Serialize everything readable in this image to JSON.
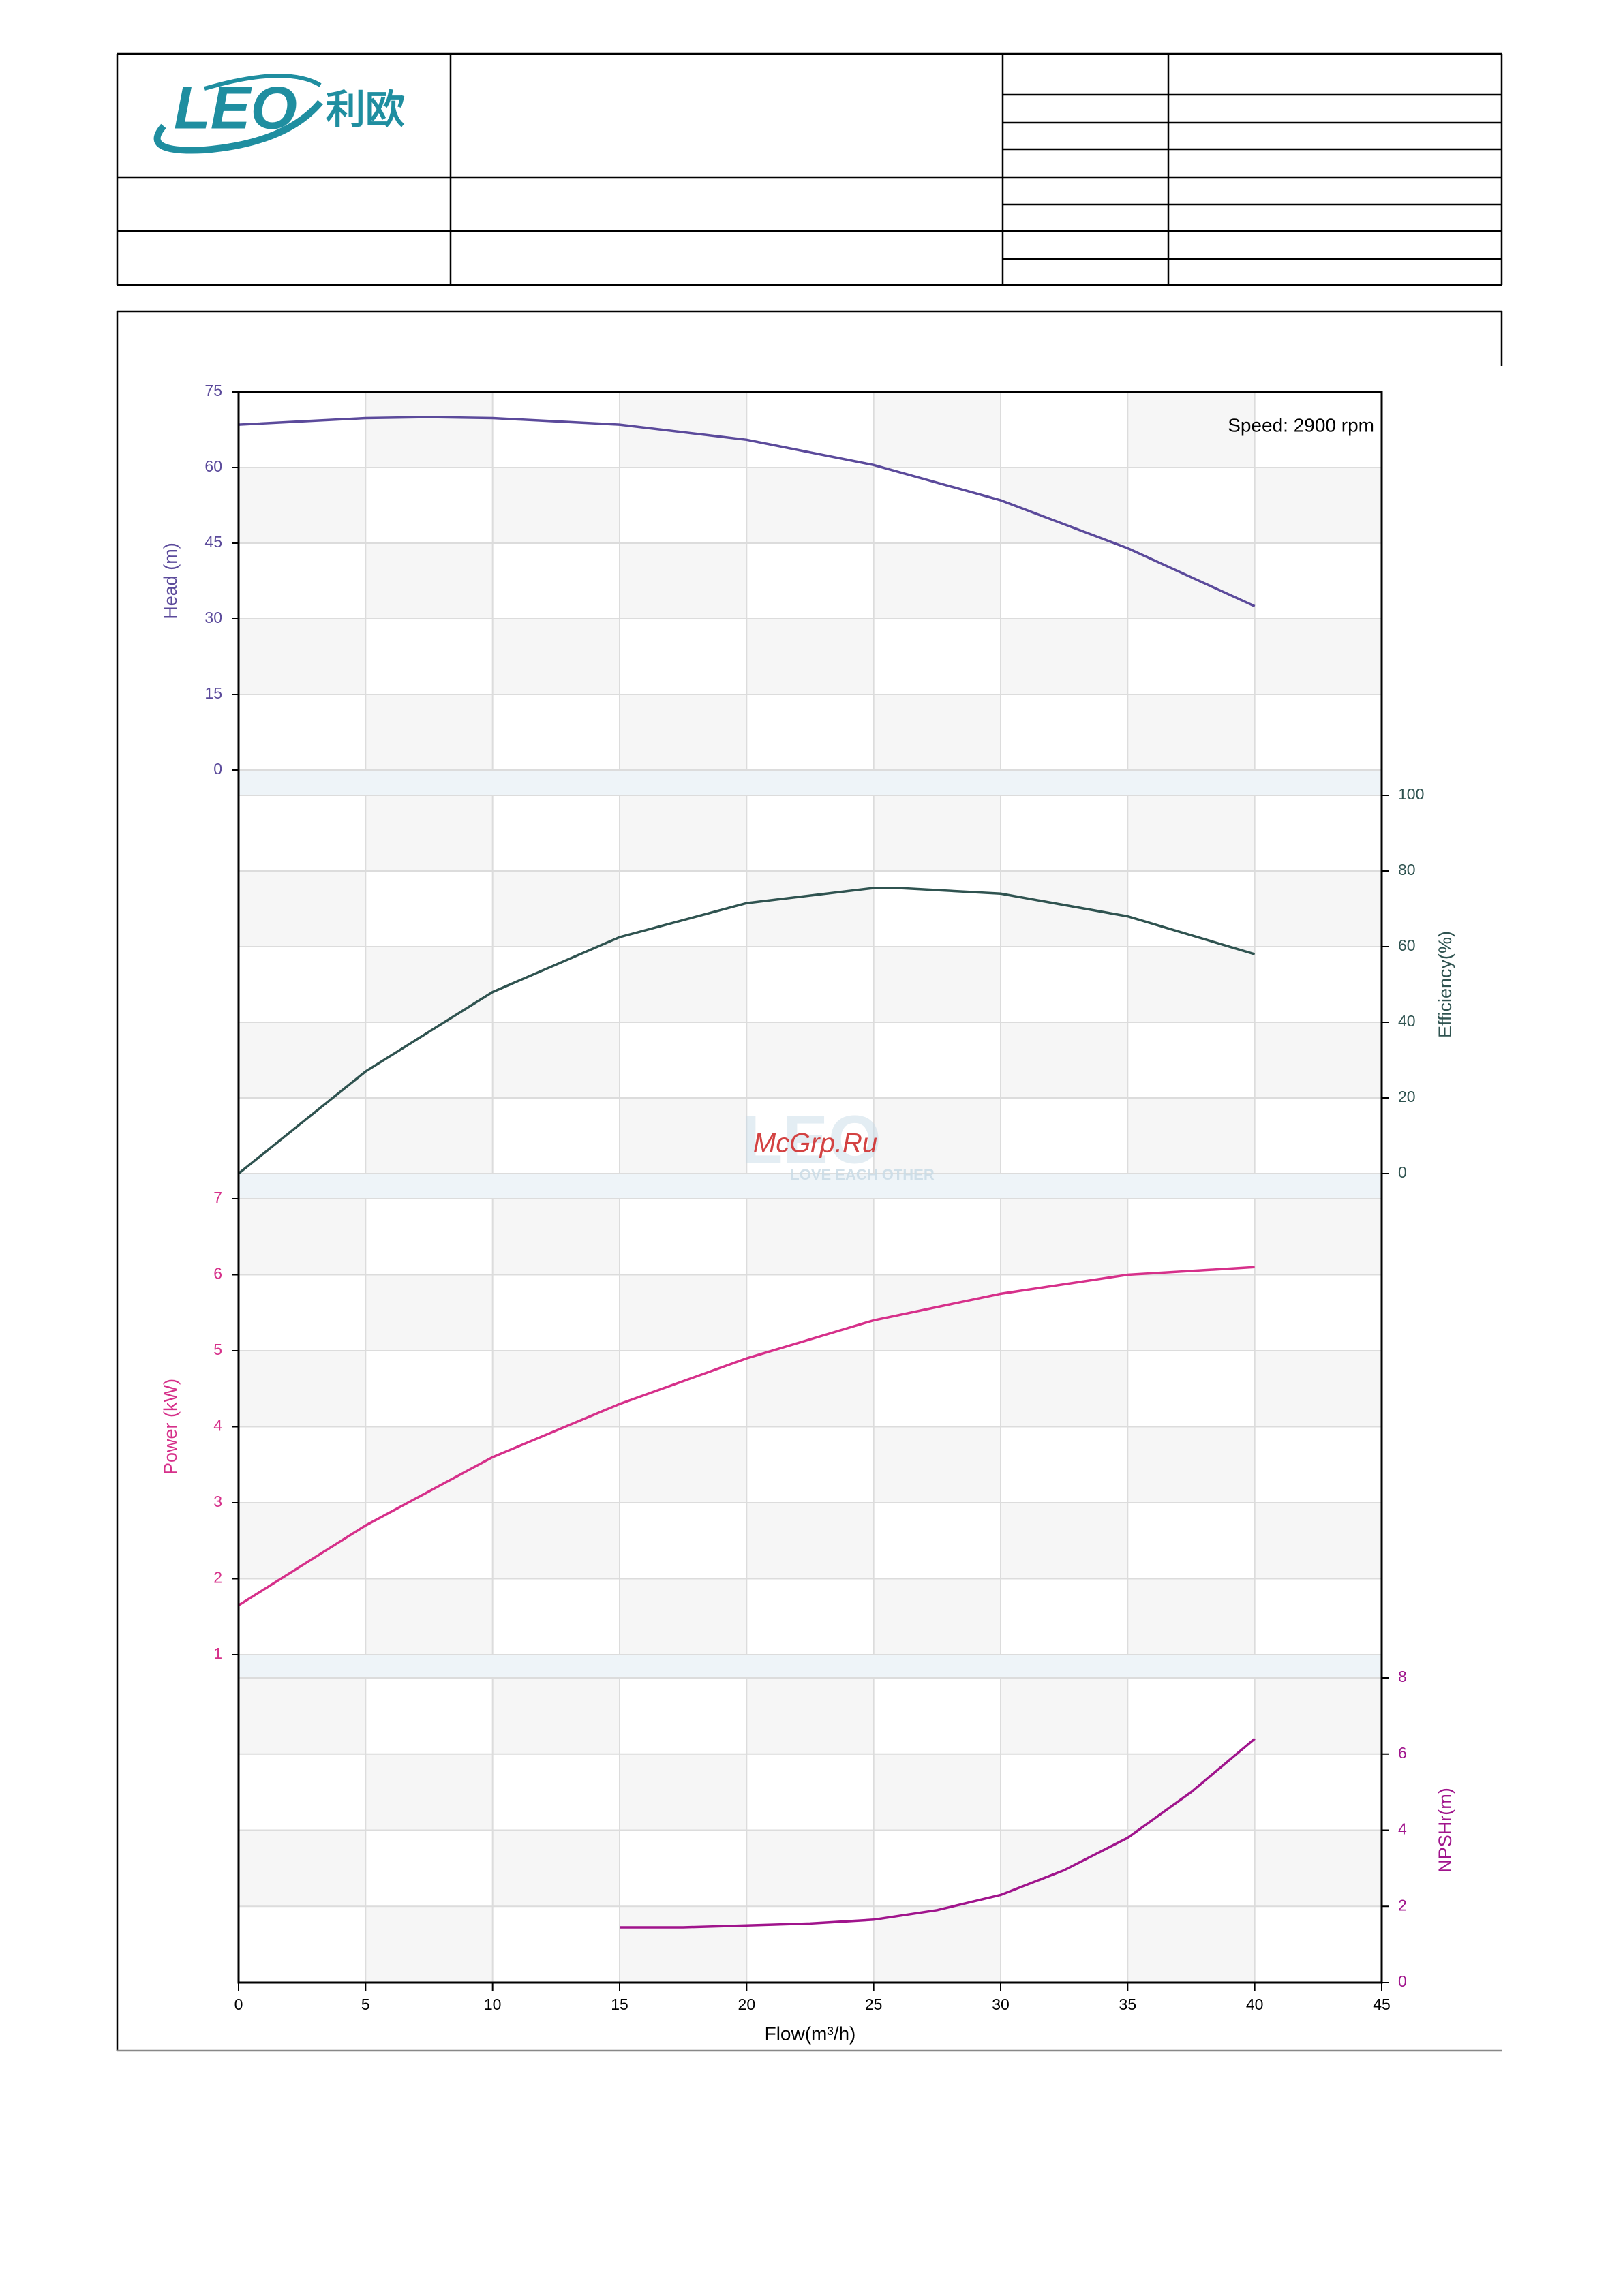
{
  "header": {
    "logo": "LEO",
    "logo_cn": "利欧"
  },
  "watermark": {
    "text": "McGrp.Ru",
    "tagline": "LOVE EACH OTHER"
  },
  "chart_data": [
    {
      "type": "line",
      "annotation": "Speed: 2900 rpm",
      "ylabel": "Head (m)",
      "axis_side": "left",
      "color": "#5b4a9b",
      "x": [
        0,
        5,
        7.5,
        10,
        15,
        20,
        25,
        30,
        35,
        40
      ],
      "values": [
        68.5,
        69.8,
        70,
        69.8,
        68.5,
        65.5,
        60.5,
        53.5,
        44,
        32.5
      ],
      "xlim": [
        0,
        45
      ],
      "ylim": [
        0,
        75
      ],
      "yticks": [
        0,
        15,
        30,
        45,
        60,
        75
      ]
    },
    {
      "type": "line",
      "ylabel": "Efficiency(%)",
      "axis_side": "right",
      "color": "#2f5350",
      "x": [
        0,
        5,
        10,
        15,
        20,
        25,
        26,
        30,
        35,
        40
      ],
      "values": [
        0,
        27,
        48,
        62.5,
        71.5,
        75.5,
        75.5,
        74,
        68,
        58
      ],
      "xlim": [
        0,
        45
      ],
      "ylim": [
        0,
        100
      ],
      "yticks": [
        0,
        20,
        40,
        60,
        80,
        100
      ]
    },
    {
      "type": "line",
      "ylabel": "Power (kW)",
      "axis_side": "left",
      "color": "#d6308a",
      "x": [
        0,
        5,
        10,
        15,
        20,
        25,
        30,
        35,
        40
      ],
      "values": [
        1.65,
        2.7,
        3.6,
        4.3,
        4.9,
        5.4,
        5.75,
        6.0,
        6.1
      ],
      "xlim": [
        0,
        45
      ],
      "ylim": [
        1,
        7
      ],
      "yticks": [
        1,
        2,
        3,
        4,
        5,
        6,
        7
      ]
    },
    {
      "type": "line",
      "ylabel": "NPSHr(m)",
      "axis_side": "right",
      "color": "#a0148c",
      "xlabel": "Flow(m³/h)",
      "x": [
        15,
        17.5,
        20,
        22.5,
        25,
        27.5,
        30,
        32.5,
        35,
        37.5,
        40
      ],
      "values": [
        1.45,
        1.45,
        1.5,
        1.55,
        1.65,
        1.9,
        2.3,
        2.95,
        3.8,
        5.0,
        6.4
      ],
      "xlim": [
        0,
        45
      ],
      "ylim": [
        0,
        8
      ],
      "yticks": [
        0,
        2,
        4,
        6,
        8
      ],
      "xticks": [
        0,
        5,
        10,
        15,
        20,
        25,
        30,
        35,
        40,
        45
      ]
    }
  ]
}
